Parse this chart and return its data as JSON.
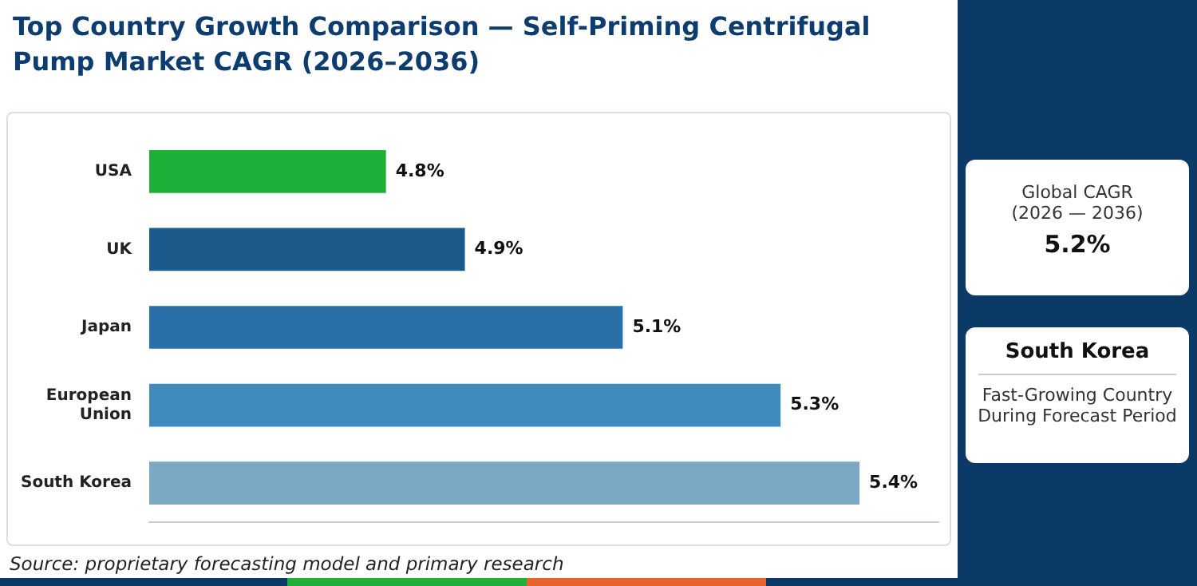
{
  "chart_data": {
    "type": "bar",
    "orientation": "horizontal",
    "title": "Top Country Growth Comparison — Self-Priming Centrifugal Pump Market CAGR (2026–2036)",
    "categories": [
      "USA",
      "UK",
      "Japan",
      "European Union",
      "South Korea"
    ],
    "values": [
      4.8,
      4.9,
      5.1,
      5.3,
      5.4
    ],
    "colors": [
      "#1fb03a",
      "#1d5a8c",
      "#2a70a8",
      "#3f8bbd",
      "#7ba8c5"
    ],
    "value_labels": [
      "4.8%",
      "4.9%",
      "5.1%",
      "5.3%",
      "5.4%"
    ],
    "xlim": [
      4.5,
      5.5
    ],
    "tick_labels": "y",
    "grid": false,
    "legend": false,
    "annotations": [
      "Global CAGR",
      "(2026 — 2036)",
      "5.2%",
      "South Korea",
      "Fast-Growing Country During Forecast Period",
      "Source: proprietary forecasting model and primary research"
    ]
  }
}
